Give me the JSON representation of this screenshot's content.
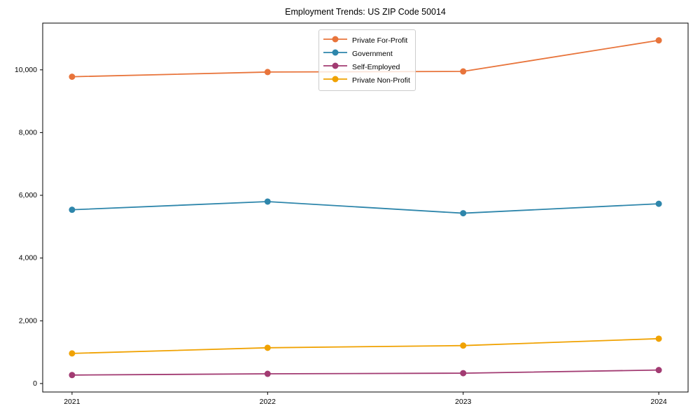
{
  "title": "Employment Trends: US ZIP Code 50014",
  "chart_data": {
    "type": "line",
    "title": "Employment Trends: US ZIP Code 50014",
    "xlabel": "",
    "ylabel": "",
    "x": [
      2021,
      2022,
      2023,
      2024
    ],
    "x_tick_labels": [
      "2021",
      "2022",
      "2023",
      "2024"
    ],
    "series": [
      {
        "name": "Private For-Profit",
        "color": "#E8743B",
        "values": [
          9780,
          9930,
          9950,
          10940
        ]
      },
      {
        "name": "Government",
        "color": "#2E86AB",
        "values": [
          5540,
          5800,
          5430,
          5730
        ]
      },
      {
        "name": "Self-Employed",
        "color": "#A23B72",
        "values": [
          270,
          310,
          330,
          430
        ]
      },
      {
        "name": "Private Non-Profit",
        "color": "#F0A202",
        "values": [
          960,
          1140,
          1210,
          1430
        ]
      }
    ],
    "yticks": [
      0,
      2000,
      4000,
      6000,
      8000,
      10000
    ],
    "ytick_labels": [
      "0",
      "2,000",
      "4,000",
      "6,000",
      "8,000",
      "10,000"
    ],
    "xlim": [
      2020.85,
      2024.15
    ],
    "ylim": [
      -270,
      11490
    ],
    "grid": false,
    "marker": "o",
    "legend": {
      "position": "upper center",
      "entries": [
        "Private For-Profit",
        "Government",
        "Self-Employed",
        "Private Non-Profit"
      ]
    }
  }
}
